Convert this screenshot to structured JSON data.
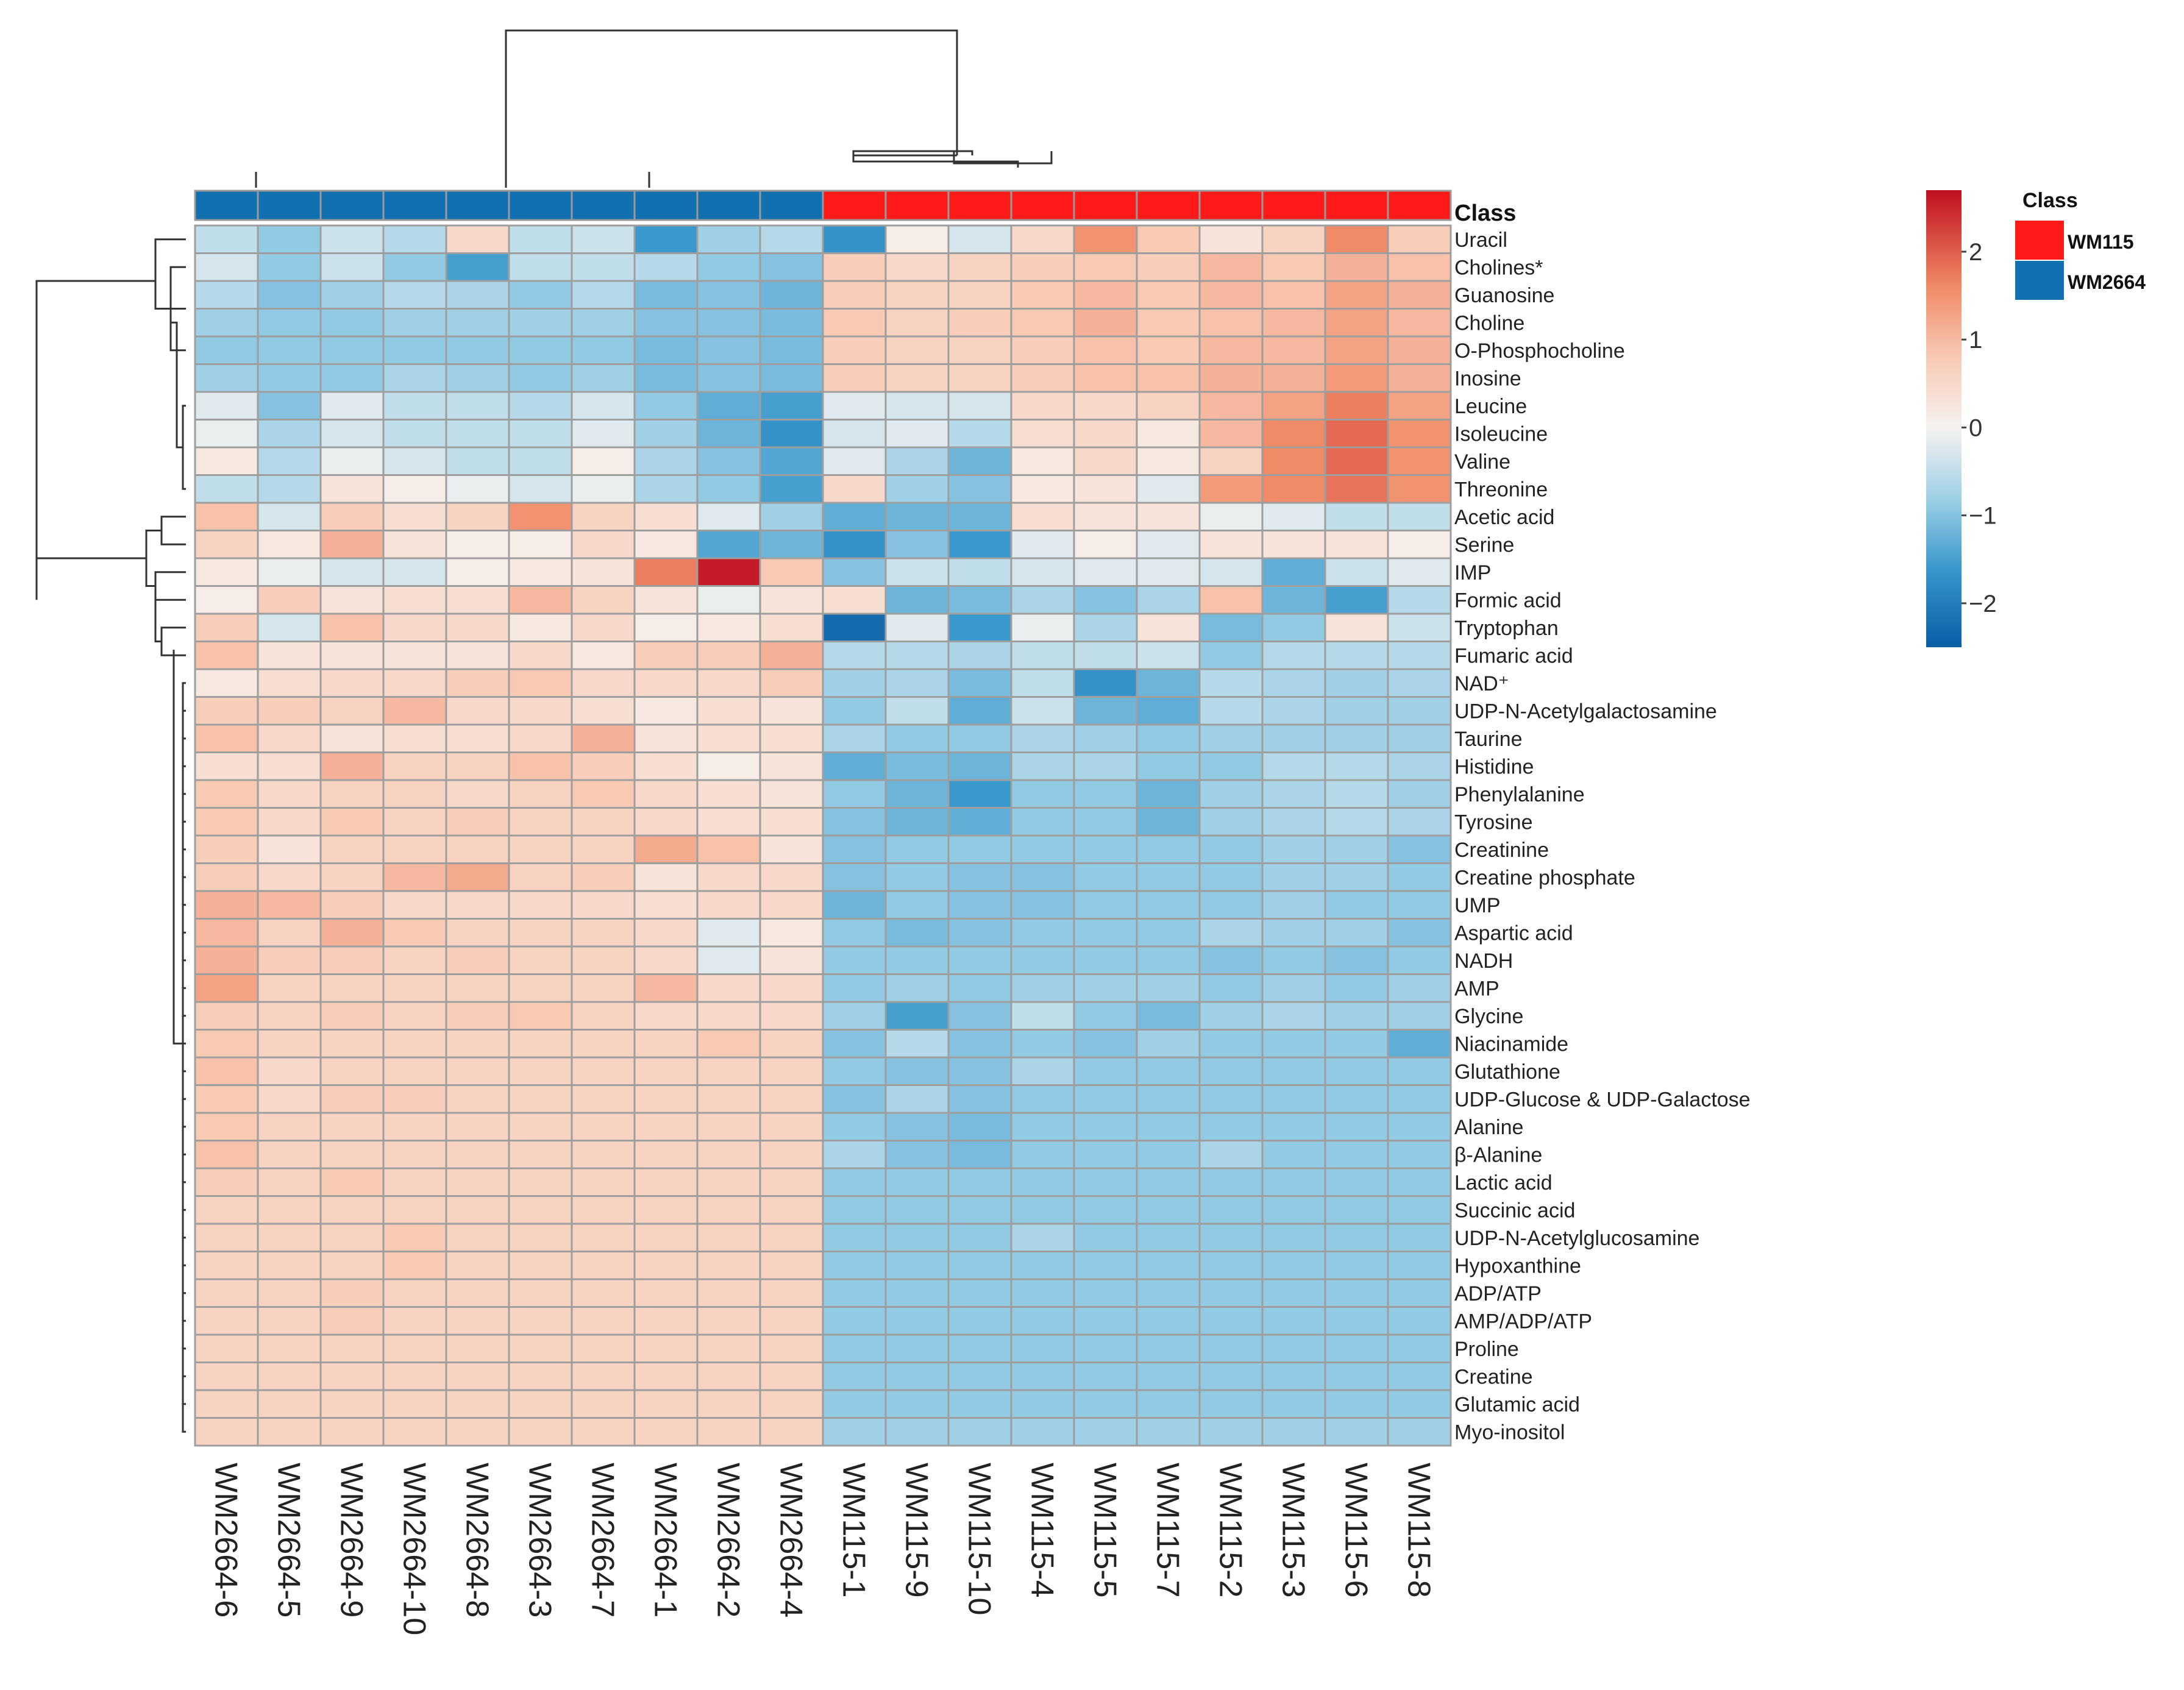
{
  "chart_data": {
    "type": "heatmap",
    "title": "",
    "columns": [
      "WM2664-6",
      "WM2664-5",
      "WM2664-9",
      "WM2664-10",
      "WM2664-8",
      "WM2664-3",
      "WM2664-7",
      "WM2664-1",
      "WM2664-2",
      "WM2664-4",
      "WM115-1",
      "WM115-9",
      "WM115-10",
      "WM115-4",
      "WM115-5",
      "WM115-7",
      "WM115-2",
      "WM115-3",
      "WM115-6",
      "WM115-8"
    ],
    "column_class": [
      "WM2664",
      "WM2664",
      "WM2664",
      "WM2664",
      "WM2664",
      "WM2664",
      "WM2664",
      "WM2664",
      "WM2664",
      "WM2664",
      "WM115",
      "WM115",
      "WM115",
      "WM115",
      "WM115",
      "WM115",
      "WM115",
      "WM115",
      "WM115",
      "WM115"
    ],
    "rows": [
      "Uracil",
      "Cholines*",
      "Guanosine",
      "Choline",
      "O-Phosphocholine",
      "Inosine",
      "Leucine",
      "Isoleucine",
      "Valine",
      "Threonine",
      "Acetic acid",
      "Serine",
      "IMP",
      "Formic acid",
      "Tryptophan",
      "Fumaric acid",
      "NAD⁺",
      "UDP-N-Acetylgalactosamine",
      "Taurine",
      "Histidine",
      "Phenylalanine",
      "Tyrosine",
      "Creatinine",
      "Creatine phosphate",
      "UMP",
      "Aspartic acid",
      "NADH",
      "AMP",
      "Glycine",
      "Niacinamide",
      "Glutathione",
      "UDP-Glucose & UDP-Galactose",
      "Alanine",
      "β-Alanine",
      "Lactic acid",
      "Succinic acid",
      "UDP-N-Acetylglucosamine",
      "Hypoxanthine",
      "ADP/ATP",
      "AMP/ADP/ATP",
      "Proline",
      "Creatine",
      "Glutamic acid",
      "Myo-inositol"
    ],
    "values": [
      [
        -0.5,
        -0.9,
        -0.4,
        -0.6,
        0.5,
        -0.5,
        -0.4,
        -1.6,
        -0.8,
        -0.6,
        -1.7,
        0.1,
        -0.3,
        0.5,
        1.5,
        0.8,
        0.3,
        0.6,
        1.6,
        0.7
      ],
      [
        -0.3,
        -0.9,
        -0.4,
        -0.9,
        -1.5,
        -0.5,
        -0.5,
        -0.6,
        -0.9,
        -1.0,
        0.7,
        0.5,
        0.6,
        0.7,
        0.8,
        0.7,
        1.0,
        0.8,
        1.1,
        0.9
      ],
      [
        -0.6,
        -1.0,
        -0.8,
        -0.6,
        -0.7,
        -0.9,
        -0.6,
        -1.1,
        -1.0,
        -1.2,
        0.7,
        0.6,
        0.6,
        0.8,
        1.0,
        0.8,
        1.0,
        0.9,
        1.3,
        1.1
      ],
      [
        -0.8,
        -0.9,
        -0.9,
        -0.8,
        -0.8,
        -0.8,
        -0.8,
        -1.0,
        -1.0,
        -1.1,
        0.8,
        0.6,
        0.7,
        0.8,
        1.1,
        0.8,
        0.9,
        1.0,
        1.3,
        1.0
      ],
      [
        -0.9,
        -0.9,
        -0.9,
        -0.9,
        -0.9,
        -0.9,
        -0.9,
        -1.1,
        -1.0,
        -1.1,
        0.7,
        0.6,
        0.6,
        0.7,
        0.9,
        0.8,
        1.0,
        1.0,
        1.3,
        1.1
      ],
      [
        -0.8,
        -0.9,
        -0.9,
        -0.7,
        -0.8,
        -0.9,
        -0.8,
        -1.1,
        -1.0,
        -1.1,
        0.7,
        0.6,
        0.6,
        0.7,
        0.9,
        0.9,
        1.1,
        1.1,
        1.4,
        1.1
      ],
      [
        -0.2,
        -1.0,
        -0.2,
        -0.5,
        -0.5,
        -0.6,
        -0.3,
        -0.9,
        -1.3,
        -1.5,
        -0.2,
        -0.3,
        -0.3,
        0.5,
        0.5,
        0.6,
        1.0,
        1.3,
        1.7,
        1.3
      ],
      [
        -0.1,
        -0.7,
        -0.3,
        -0.5,
        -0.5,
        -0.5,
        -0.2,
        -0.8,
        -1.2,
        -1.7,
        -0.3,
        -0.2,
        -0.6,
        0.4,
        0.5,
        0.2,
        1.0,
        1.6,
        1.9,
        1.5
      ],
      [
        0.2,
        -0.6,
        -0.1,
        -0.3,
        -0.5,
        -0.5,
        0.1,
        -0.7,
        -1.0,
        -1.4,
        -0.2,
        -0.7,
        -1.2,
        0.2,
        0.5,
        0.2,
        0.6,
        1.6,
        1.9,
        1.5
      ],
      [
        -0.5,
        -0.6,
        0.3,
        0.1,
        -0.1,
        -0.3,
        -0.1,
        -0.7,
        -0.9,
        -1.5,
        0.5,
        -0.8,
        -1.0,
        0.2,
        0.3,
        -0.2,
        1.4,
        1.6,
        1.8,
        1.5
      ],
      [
        0.9,
        -0.3,
        0.7,
        0.4,
        0.6,
        1.5,
        0.6,
        0.4,
        -0.2,
        -0.8,
        -1.3,
        -1.2,
        -1.2,
        0.4,
        0.3,
        0.3,
        -0.1,
        -0.2,
        -0.5,
        -0.5
      ],
      [
        0.6,
        0.2,
        1.1,
        0.3,
        0.1,
        0.1,
        0.5,
        0.2,
        -1.4,
        -1.2,
        -1.7,
        -1.0,
        -1.6,
        -0.2,
        0.1,
        -0.2,
        0.3,
        0.3,
        0.3,
        0.1
      ],
      [
        0.2,
        -0.1,
        -0.3,
        -0.3,
        0.1,
        0.2,
        0.3,
        1.7,
        2.6,
        0.8,
        -1.0,
        -0.4,
        -0.5,
        -0.3,
        -0.2,
        -0.2,
        -0.3,
        -1.3,
        -0.4,
        -0.2
      ],
      [
        0.1,
        0.7,
        0.3,
        0.4,
        0.4,
        1.0,
        0.6,
        0.3,
        -0.1,
        0.3,
        0.4,
        -1.2,
        -1.1,
        -0.7,
        -1.0,
        -0.7,
        0.9,
        -1.2,
        -1.5,
        -0.6
      ],
      [
        0.7,
        -0.3,
        0.9,
        0.5,
        0.5,
        0.2,
        0.5,
        0.1,
        0.2,
        0.4,
        -2.3,
        -0.2,
        -1.6,
        -0.1,
        -0.7,
        0.3,
        -1.1,
        -0.9,
        0.3,
        -0.4
      ],
      [
        0.9,
        0.3,
        0.3,
        0.3,
        0.3,
        0.5,
        0.2,
        0.7,
        0.7,
        1.1,
        -0.6,
        -0.6,
        -0.7,
        -0.5,
        -0.5,
        -0.4,
        -0.9,
        -0.6,
        -0.6,
        -0.6
      ],
      [
        0.2,
        0.4,
        0.5,
        0.5,
        0.7,
        0.8,
        0.5,
        0.5,
        0.5,
        0.7,
        -0.8,
        -0.7,
        -1.1,
        -0.5,
        -1.7,
        -1.2,
        -0.6,
        -0.7,
        -0.8,
        -0.7
      ],
      [
        0.7,
        0.7,
        0.6,
        1.0,
        0.5,
        0.5,
        0.4,
        0.2,
        0.4,
        0.3,
        -0.9,
        -0.5,
        -1.3,
        -0.4,
        -1.2,
        -1.3,
        -0.6,
        -0.7,
        -0.8,
        -0.8
      ],
      [
        0.9,
        0.5,
        0.3,
        0.4,
        0.4,
        0.5,
        1.1,
        0.3,
        0.4,
        0.4,
        -0.7,
        -0.9,
        -0.9,
        -0.7,
        -0.8,
        -0.9,
        -0.8,
        -0.8,
        -0.8,
        -0.8
      ],
      [
        0.4,
        0.4,
        1.1,
        0.6,
        0.6,
        0.9,
        0.7,
        0.4,
        0.1,
        0.3,
        -1.3,
        -1.1,
        -1.2,
        -0.7,
        -0.7,
        -0.9,
        -0.9,
        -0.6,
        -0.6,
        -0.7
      ],
      [
        0.8,
        0.5,
        0.6,
        0.6,
        0.5,
        0.6,
        0.8,
        0.5,
        0.4,
        0.3,
        -0.9,
        -1.2,
        -1.6,
        -0.9,
        -0.9,
        -1.2,
        -0.8,
        -0.7,
        -0.6,
        -0.8
      ],
      [
        0.8,
        0.5,
        0.8,
        0.6,
        0.7,
        0.6,
        0.6,
        0.5,
        0.4,
        0.4,
        -1.0,
        -1.2,
        -1.3,
        -0.9,
        -0.9,
        -1.2,
        -0.8,
        -0.7,
        -0.6,
        -0.7
      ],
      [
        0.7,
        0.3,
        0.6,
        0.6,
        0.6,
        0.6,
        0.6,
        1.2,
        0.9,
        0.3,
        -1.0,
        -0.9,
        -0.9,
        -0.9,
        -0.9,
        -0.9,
        -0.9,
        -0.8,
        -0.8,
        -1.0
      ],
      [
        0.7,
        0.5,
        0.6,
        1.0,
        1.2,
        0.6,
        0.7,
        0.3,
        0.5,
        0.5,
        -1.0,
        -0.9,
        -1.0,
        -1.0,
        -0.9,
        -0.9,
        -0.9,
        -0.8,
        -0.8,
        -0.9
      ],
      [
        1.1,
        1.0,
        0.7,
        0.5,
        0.5,
        0.5,
        0.5,
        0.4,
        0.5,
        0.5,
        -1.2,
        -0.9,
        -1.0,
        -1.0,
        -0.9,
        -0.9,
        -0.9,
        -0.8,
        -0.9,
        -0.9
      ],
      [
        1.0,
        0.6,
        1.1,
        0.8,
        0.6,
        0.6,
        0.6,
        0.5,
        -0.2,
        0.2,
        -0.9,
        -1.1,
        -1.0,
        -0.9,
        -0.9,
        -0.9,
        -0.7,
        -0.8,
        -0.8,
        -1.0
      ],
      [
        1.1,
        0.7,
        0.7,
        0.6,
        0.7,
        0.6,
        0.6,
        0.5,
        -0.2,
        0.3,
        -0.9,
        -0.9,
        -0.9,
        -0.9,
        -0.9,
        -0.9,
        -1.0,
        -0.9,
        -1.0,
        -0.9
      ],
      [
        1.3,
        0.6,
        0.6,
        0.6,
        0.6,
        0.6,
        0.6,
        1.0,
        0.5,
        0.5,
        -0.9,
        -0.8,
        -0.9,
        -0.8,
        -0.8,
        -0.8,
        -0.9,
        -0.8,
        -0.9,
        -0.8
      ],
      [
        0.7,
        0.6,
        0.7,
        0.6,
        0.7,
        0.8,
        0.6,
        0.5,
        0.5,
        0.5,
        -0.8,
        -1.5,
        -1.0,
        -0.5,
        -0.9,
        -1.1,
        -0.8,
        -0.7,
        -0.8,
        -0.8
      ],
      [
        0.8,
        0.6,
        0.6,
        0.6,
        0.6,
        0.6,
        0.6,
        0.6,
        0.8,
        0.6,
        -1.0,
        -0.6,
        -1.0,
        -0.9,
        -1.0,
        -0.8,
        -0.9,
        -0.9,
        -0.9,
        -1.3
      ],
      [
        0.9,
        0.5,
        0.6,
        0.6,
        0.6,
        0.6,
        0.6,
        0.6,
        0.6,
        0.6,
        -0.9,
        -1.0,
        -1.0,
        -0.7,
        -0.9,
        -0.9,
        -0.9,
        -0.9,
        -0.9,
        -0.9
      ],
      [
        0.8,
        0.5,
        0.7,
        0.7,
        0.6,
        0.6,
        0.6,
        0.6,
        0.6,
        0.6,
        -1.0,
        -0.7,
        -1.0,
        -0.9,
        -0.9,
        -0.9,
        -0.9,
        -0.9,
        -0.9,
        -0.9
      ],
      [
        0.8,
        0.6,
        0.6,
        0.6,
        0.6,
        0.6,
        0.6,
        0.6,
        0.6,
        0.6,
        -0.9,
        -1.0,
        -1.1,
        -0.9,
        -0.9,
        -0.9,
        -0.9,
        -0.9,
        -0.9,
        -0.9
      ],
      [
        0.9,
        0.6,
        0.6,
        0.6,
        0.6,
        0.6,
        0.6,
        0.6,
        0.6,
        0.6,
        -0.7,
        -1.0,
        -1.1,
        -0.9,
        -0.9,
        -0.9,
        -0.7,
        -0.9,
        -0.9,
        -0.9
      ],
      [
        0.7,
        0.6,
        0.8,
        0.6,
        0.6,
        0.6,
        0.6,
        0.6,
        0.6,
        0.6,
        -0.9,
        -0.9,
        -0.9,
        -0.9,
        -0.9,
        -0.9,
        -0.9,
        -0.9,
        -0.9,
        -0.9
      ],
      [
        0.6,
        0.6,
        0.6,
        0.6,
        0.6,
        0.6,
        0.6,
        0.6,
        0.6,
        0.6,
        -0.9,
        -0.9,
        -0.9,
        -0.9,
        -0.9,
        -0.9,
        -0.9,
        -0.9,
        -0.9,
        -0.9
      ],
      [
        0.6,
        0.6,
        0.6,
        0.8,
        0.6,
        0.6,
        0.6,
        0.6,
        0.6,
        0.6,
        -0.9,
        -0.9,
        -0.9,
        -0.7,
        -0.9,
        -0.9,
        -0.9,
        -0.9,
        -0.9,
        -0.9
      ],
      [
        0.6,
        0.6,
        0.6,
        0.8,
        0.6,
        0.6,
        0.6,
        0.6,
        0.6,
        0.6,
        -0.9,
        -0.9,
        -0.9,
        -0.9,
        -0.9,
        -0.9,
        -0.9,
        -0.9,
        -0.9,
        -0.9
      ],
      [
        0.6,
        0.6,
        0.7,
        0.6,
        0.6,
        0.6,
        0.6,
        0.6,
        0.6,
        0.6,
        -0.9,
        -0.9,
        -0.9,
        -0.9,
        -0.9,
        -0.9,
        -0.9,
        -0.9,
        -0.9,
        -0.9
      ],
      [
        0.6,
        0.6,
        0.7,
        0.6,
        0.6,
        0.6,
        0.6,
        0.6,
        0.6,
        0.6,
        -0.9,
        -0.9,
        -0.9,
        -0.9,
        -0.9,
        -0.9,
        -0.9,
        -0.9,
        -0.9,
        -0.9
      ],
      [
        0.6,
        0.6,
        0.6,
        0.6,
        0.6,
        0.6,
        0.6,
        0.6,
        0.6,
        0.6,
        -0.9,
        -0.9,
        -0.9,
        -0.9,
        -0.9,
        -0.9,
        -0.9,
        -0.9,
        -0.9,
        -0.9
      ],
      [
        0.6,
        0.6,
        0.6,
        0.6,
        0.6,
        0.6,
        0.6,
        0.6,
        0.6,
        0.6,
        -0.9,
        -0.9,
        -0.9,
        -0.9,
        -0.9,
        -0.9,
        -0.9,
        -0.9,
        -0.9,
        -0.9
      ],
      [
        0.6,
        0.6,
        0.6,
        0.6,
        0.6,
        0.6,
        0.6,
        0.6,
        0.6,
        0.6,
        -0.9,
        -0.9,
        -0.9,
        -0.9,
        -0.9,
        -0.9,
        -0.9,
        -0.9,
        -0.9,
        -0.9
      ],
      [
        0.6,
        0.6,
        0.6,
        0.6,
        0.6,
        0.6,
        0.6,
        0.6,
        0.6,
        0.6,
        -0.8,
        -0.8,
        -0.8,
        -0.8,
        -0.8,
        -0.8,
        -0.8,
        -0.8,
        -0.8,
        -0.8
      ]
    ],
    "color_scale": {
      "range": [
        -2.5,
        2.7
      ],
      "stops": [
        {
          "value": -2.5,
          "color": "#0a5ea6"
        },
        {
          "value": -1.6,
          "color": "#3a98cc"
        },
        {
          "value": -0.8,
          "color": "#9fd0e6"
        },
        {
          "value": 0.0,
          "color": "#f6f2f0"
        },
        {
          "value": 0.8,
          "color": "#f8c9b3"
        },
        {
          "value": 1.6,
          "color": "#f08a67"
        },
        {
          "value": 2.7,
          "color": "#c0101f"
        }
      ],
      "ticks": [
        2,
        1,
        0,
        -1,
        -2
      ],
      "tick_labels": [
        "2",
        "1",
        "0",
        "−1",
        "−2"
      ]
    },
    "annotation": {
      "label": "Class",
      "legend_title": "Class",
      "classes": [
        {
          "name": "WM115",
          "color": "#ff1a1a"
        },
        {
          "name": "WM2664",
          "color": "#1170b0"
        }
      ]
    }
  }
}
